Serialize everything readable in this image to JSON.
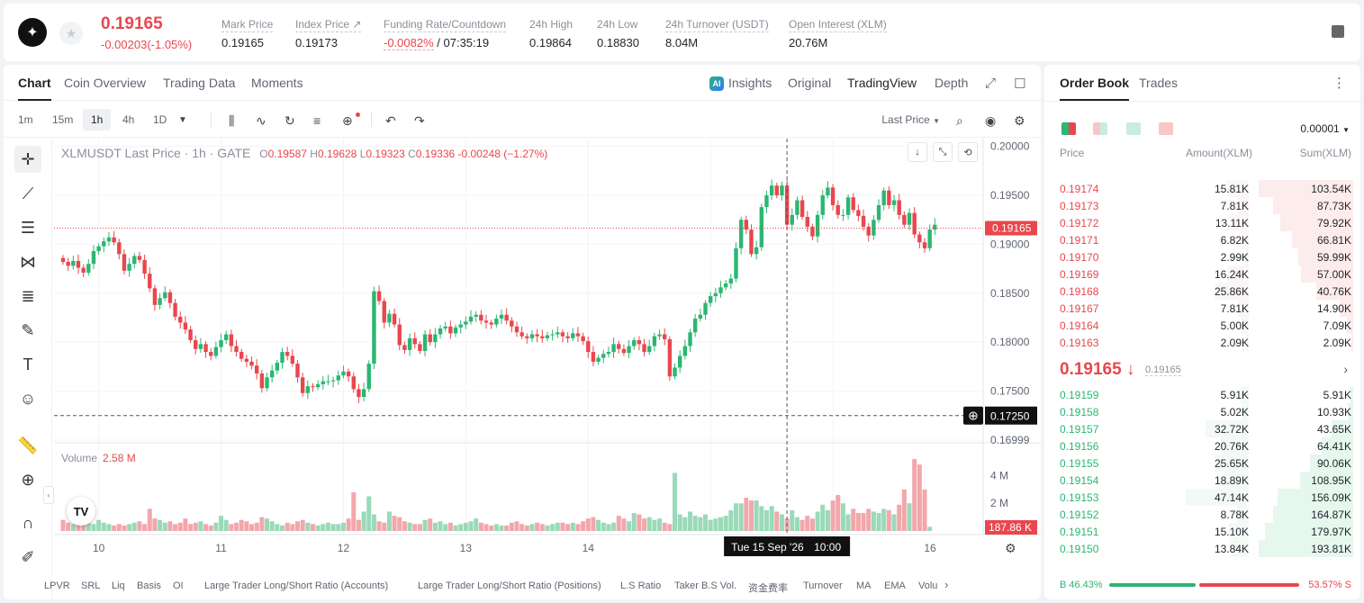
{
  "header": {
    "logo_icon": "stellar-logo-icon",
    "last_price": "0.19165",
    "change": "-0.00203(-1.05%)",
    "stats": [
      {
        "label": "Mark Price",
        "value": "0.19165"
      },
      {
        "label": "Index Price ↗",
        "value": "0.19173"
      },
      {
        "label": "Funding Rate/Countdown",
        "value_rate": "-0.0082%",
        "value_countdown": "/ 07:35:19"
      },
      {
        "label": "24h High",
        "value": "0.19864"
      },
      {
        "label": "24h Low",
        "value": "0.18830"
      },
      {
        "label": "24h Turnover (USDT)",
        "value": "8.04M"
      },
      {
        "label": "Open Interest (XLM)",
        "value": "20.76M"
      }
    ]
  },
  "chart_tabs": [
    "Chart",
    "Coin Overview",
    "Trading Data",
    "Moments"
  ],
  "view_tabs": {
    "insights": "Insights",
    "original": "Original",
    "tradingview": "TradingView",
    "depth": "Depth"
  },
  "intervals": [
    "1m",
    "15m",
    "1h",
    "4h",
    "1D"
  ],
  "price_type": "Last Price",
  "legend": {
    "symbol": "XLMUSDT Last Price · 1h · GATE",
    "o": "0.19587",
    "h": "0.19628",
    "l": "0.19323",
    "c": "0.19336",
    "chg": "-0.00248 (−1.27%)"
  },
  "volume_legend": {
    "label": "Volume",
    "value": "2.58 M"
  },
  "chart_data": {
    "type": "candlestick",
    "y_ticks": [
      "0.20000",
      "0.19500",
      "0.19000",
      "0.18500",
      "0.18000",
      "0.17500",
      "0.16999"
    ],
    "ylim": [
      0.1699,
      0.2008
    ],
    "x_ticks": [
      "10",
      "11",
      "12",
      "13",
      "14",
      "15",
      "16"
    ],
    "crosshair_time": "Tue 15 Sep '26",
    "crosshair_hour": "10:00",
    "current_price_label": "0.19165",
    "crosshair_price_label": "0.17250",
    "crosshair_price_value": 0.1725,
    "volume_ticks": [
      "4 M",
      "2 M"
    ],
    "volume_ylim": [
      0,
      5.2
    ],
    "current_volume_label": "187.86 K",
    "close_series": [
      0.1882,
      0.1878,
      0.1883,
      0.1876,
      0.1871,
      0.188,
      0.1893,
      0.1898,
      0.1903,
      0.1907,
      0.1902,
      0.189,
      0.1873,
      0.188,
      0.1888,
      0.1884,
      0.187,
      0.1855,
      0.1838,
      0.1845,
      0.1851,
      0.184,
      0.1826,
      0.182,
      0.1813,
      0.1802,
      0.1793,
      0.1798,
      0.179,
      0.1786,
      0.1795,
      0.1802,
      0.1808,
      0.1796,
      0.179,
      0.1783,
      0.178,
      0.1776,
      0.1768,
      0.1753,
      0.1764,
      0.1771,
      0.1779,
      0.179,
      0.1786,
      0.1778,
      0.1764,
      0.1748,
      0.1755,
      0.1754,
      0.1757,
      0.176,
      0.176,
      0.1761,
      0.1766,
      0.177,
      0.1765,
      0.1752,
      0.1744,
      0.1752,
      0.1778,
      0.1852,
      0.1842,
      0.182,
      0.1829,
      0.1818,
      0.1797,
      0.1792,
      0.1804,
      0.1798,
      0.1791,
      0.1808,
      0.18,
      0.1808,
      0.1814,
      0.1816,
      0.1809,
      0.1815,
      0.1818,
      0.1821,
      0.1826,
      0.1828,
      0.1822,
      0.182,
      0.1818,
      0.1824,
      0.1828,
      0.1822,
      0.1816,
      0.181,
      0.1806,
      0.1804,
      0.1808,
      0.1806,
      0.1804,
      0.1807,
      0.1808,
      0.181,
      0.1806,
      0.1804,
      0.1809,
      0.1806,
      0.1801,
      0.179,
      0.178,
      0.1784,
      0.1788,
      0.179,
      0.1798,
      0.1793,
      0.1789,
      0.1796,
      0.1802,
      0.1798,
      0.179,
      0.1796,
      0.1806,
      0.1808,
      0.1803,
      0.1765,
      0.1774,
      0.1786,
      0.1796,
      0.181,
      0.1824,
      0.1828,
      0.184,
      0.1847,
      0.185,
      0.1856,
      0.186,
      0.1865,
      0.1896,
      0.1925,
      0.1915,
      0.189,
      0.1897,
      0.1938,
      0.195,
      0.196,
      0.195,
      0.196,
      0.192,
      0.193,
      0.1945,
      0.1928,
      0.1918,
      0.1908,
      0.193,
      0.195,
      0.1958,
      0.194,
      0.193,
      0.193,
      0.1948,
      0.1935,
      0.1929,
      0.1918,
      0.1909,
      0.1925,
      0.194,
      0.1955,
      0.194,
      0.1945,
      0.193,
      0.192,
      0.1932,
      0.191,
      0.1902,
      0.1896,
      0.1915,
      0.192
    ],
    "volume_series": [
      0.8,
      0.6,
      0.5,
      0.7,
      0.9,
      0.6,
      0.5,
      0.8,
      0.6,
      0.5,
      0.4,
      0.5,
      0.4,
      0.5,
      0.6,
      0.7,
      0.5,
      1.6,
      0.9,
      0.8,
      0.6,
      0.7,
      0.5,
      0.6,
      0.9,
      0.5,
      0.6,
      0.7,
      0.5,
      0.4,
      0.6,
      1.1,
      0.8,
      0.5,
      0.6,
      0.8,
      0.7,
      0.5,
      0.6,
      1.0,
      0.9,
      0.7,
      0.5,
      0.4,
      0.6,
      0.5,
      0.7,
      0.8,
      0.6,
      0.5,
      0.4,
      0.5,
      0.6,
      0.5,
      0.5,
      0.6,
      0.9,
      2.8,
      0.8,
      1.4,
      2.5,
      1.2,
      0.7,
      0.6,
      1.4,
      1.1,
      1.0,
      0.7,
      0.6,
      0.5,
      0.5,
      0.8,
      0.9,
      0.6,
      0.7,
      0.5,
      0.6,
      0.4,
      0.5,
      0.6,
      0.7,
      0.9,
      0.6,
      0.5,
      0.4,
      0.5,
      0.4,
      0.4,
      0.6,
      0.7,
      0.5,
      0.4,
      0.5,
      0.6,
      0.5,
      0.4,
      0.5,
      0.6,
      0.6,
      0.5,
      0.6,
      0.5,
      0.7,
      0.9,
      1.0,
      0.8,
      0.6,
      0.5,
      0.6,
      1.1,
      0.9,
      0.7,
      1.3,
      1.2,
      0.9,
      1.0,
      0.8,
      0.9,
      0.6,
      0.5,
      4.2,
      1.2,
      1.0,
      1.4,
      1.1,
      1.0,
      1.2,
      0.8,
      0.9,
      1.0,
      1.1,
      1.5,
      2.0,
      2.0,
      2.4,
      2.2,
      2.2,
      1.8,
      1.5,
      1.8,
      1.4,
      1.2,
      0.9,
      1.5,
      1.0,
      0.8,
      1.1,
      0.9,
      1.4,
      1.9,
      1.5,
      2.2,
      2.6,
      2.0,
      1.2,
      1.6,
      1.3,
      1.3,
      1.6,
      1.4,
      1.3,
      1.6,
      1.5,
      1.2,
      1.9,
      3.0,
      2.0,
      5.2,
      4.8,
      3.0,
      0.3
    ]
  },
  "indicators": [
    "LPVR",
    "SRL",
    "Liq",
    "Basis",
    "OI",
    "Large Trader Long/Short Ratio (Accounts)",
    "Large Trader Long/Short Ratio (Positions)",
    "L.S Ratio",
    "Taker B.S Vol.",
    "资金费率",
    "Turnover",
    "MA",
    "EMA",
    "Volu"
  ],
  "orderbook": {
    "tabs": [
      "Order Book",
      "Trades"
    ],
    "decimals": "0.00001",
    "headers": {
      "price": "Price",
      "amount": "Amount(XLM)",
      "sum": "Sum(XLM)"
    },
    "asks": [
      {
        "price": "0.19174",
        "amount": "15.81K",
        "sum": "103.54K",
        "depth": 1.0,
        "amt": 0.34
      },
      {
        "price": "0.19173",
        "amount": "7.81K",
        "sum": "87.73K",
        "depth": 0.85,
        "amt": 0.17
      },
      {
        "price": "0.19172",
        "amount": "13.11K",
        "sum": "79.92K",
        "depth": 0.77,
        "amt": 0.28
      },
      {
        "price": "0.19171",
        "amount": "6.82K",
        "sum": "66.81K",
        "depth": 0.65,
        "amt": 0.15
      },
      {
        "price": "0.19170",
        "amount": "2.99K",
        "sum": "59.99K",
        "depth": 0.58,
        "amt": 0.06
      },
      {
        "price": "0.19169",
        "amount": "16.24K",
        "sum": "57.00K",
        "depth": 0.55,
        "amt": 0.35
      },
      {
        "price": "0.19168",
        "amount": "25.86K",
        "sum": "40.76K",
        "depth": 0.39,
        "amt": 0.55
      },
      {
        "price": "0.19167",
        "amount": "7.81K",
        "sum": "14.90K",
        "depth": 0.14,
        "amt": 0.17
      },
      {
        "price": "0.19164",
        "amount": "5.00K",
        "sum": "7.09K",
        "depth": 0.07,
        "amt": 0.11
      },
      {
        "price": "0.19163",
        "amount": "2.09K",
        "sum": "2.09K",
        "depth": 0.02,
        "amt": 0.04
      }
    ],
    "mid_price": "0.19165 ↓",
    "mark_price": "0.19165",
    "bids": [
      {
        "price": "0.19159",
        "amount": "5.91K",
        "sum": "5.91K",
        "depth": 0.03,
        "amt": 0.13
      },
      {
        "price": "0.19158",
        "amount": "5.02K",
        "sum": "10.93K",
        "depth": 0.06,
        "amt": 0.11
      },
      {
        "price": "0.19157",
        "amount": "32.72K",
        "sum": "43.65K",
        "depth": 0.23,
        "amt": 0.69
      },
      {
        "price": "0.19156",
        "amount": "20.76K",
        "sum": "64.41K",
        "depth": 0.33,
        "amt": 0.44
      },
      {
        "price": "0.19155",
        "amount": "25.65K",
        "sum": "90.06K",
        "depth": 0.46,
        "amt": 0.54
      },
      {
        "price": "0.19154",
        "amount": "18.89K",
        "sum": "108.95K",
        "depth": 0.56,
        "amt": 0.4
      },
      {
        "price": "0.19153",
        "amount": "47.14K",
        "sum": "156.09K",
        "depth": 0.8,
        "amt": 1.0
      },
      {
        "price": "0.19152",
        "amount": "8.78K",
        "sum": "164.87K",
        "depth": 0.85,
        "amt": 0.19
      },
      {
        "price": "0.19151",
        "amount": "15.10K",
        "sum": "179.97K",
        "depth": 0.93,
        "amt": 0.32
      },
      {
        "price": "0.19150",
        "amount": "13.84K",
        "sum": "193.81K",
        "depth": 1.0,
        "amt": 0.29
      }
    ],
    "buy_ratio": "B 46.43%",
    "sell_ratio": "53.57% S",
    "buy_fraction": 0.4643
  }
}
